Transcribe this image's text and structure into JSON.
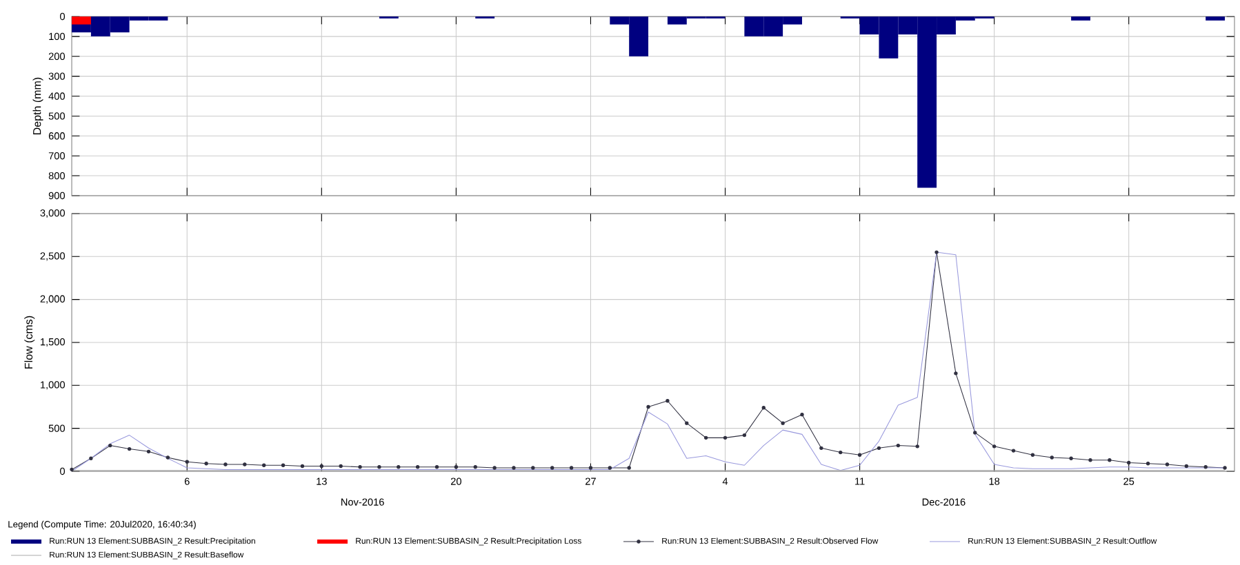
{
  "chart_data": [
    {
      "type": "bar",
      "ylabel": "Depth (mm)",
      "xlim": [
        "2016-10-31",
        "2016-12-30T12:00"
      ],
      "xticks": [
        {
          "value": "2016-11-06",
          "label": null
        },
        {
          "value": "2016-11-13",
          "label": null
        },
        {
          "value": "2016-11-20",
          "label": null
        },
        {
          "value": "2016-11-27",
          "label": null
        },
        {
          "value": "2016-12-04",
          "label": null
        },
        {
          "value": "2016-12-11",
          "label": null
        },
        {
          "value": "2016-12-18",
          "label": null
        },
        {
          "value": "2016-12-25",
          "label": null
        }
      ],
      "ylim": [
        900,
        0
      ],
      "yticks": [
        0,
        100,
        200,
        300,
        400,
        500,
        600,
        700,
        800,
        900
      ],
      "grid": true,
      "tick_labels": "y",
      "legend": "bottom",
      "series": [
        {
          "name": "Run:RUN 13 Element:SUBBASIN_2 Result:Precipitation",
          "color": "#000080",
          "x": [
            "2016-10-31T12:00",
            "2016-11-01T12:00",
            "2016-11-02T12:00",
            "2016-11-03T12:00",
            "2016-11-04T12:00",
            "2016-11-16T12:00",
            "2016-11-21T12:00",
            "2016-11-28T12:00",
            "2016-11-29T12:00",
            "2016-12-01T12:00",
            "2016-12-02T12:00",
            "2016-12-03T12:00",
            "2016-12-05T12:00",
            "2016-12-06T12:00",
            "2016-12-07T12:00",
            "2016-12-10T12:00",
            "2016-12-11T12:00",
            "2016-12-12T12:00",
            "2016-12-13T12:00",
            "2016-12-14T12:00",
            "2016-12-15T12:00",
            "2016-12-16T12:00",
            "2016-12-17T12:00",
            "2016-12-22T12:00",
            "2016-12-29T12:00"
          ],
          "values": [
            80,
            100,
            80,
            20,
            20,
            10,
            10,
            40,
            200,
            40,
            10,
            10,
            100,
            100,
            40,
            10,
            90,
            210,
            90,
            860,
            90,
            20,
            10,
            20,
            20
          ]
        },
        {
          "name": "Run:RUN 13 Element:SUBBASIN_2 Result:Precipitation Loss",
          "color": "#ff0000",
          "x": [
            "2016-10-31T12:00"
          ],
          "values": [
            40
          ]
        }
      ]
    },
    {
      "type": "line",
      "ylabel": "Flow (cms)",
      "legend_title": "Legend (Compute Time: 20Jul2020, 16:40:34)",
      "annotations": [
        "Nov-2016",
        "Dec-2016"
      ],
      "xlim": [
        "2016-10-31",
        "2016-12-30T12:00"
      ],
      "xticks": [
        {
          "value": "2016-11-06",
          "label": "6"
        },
        {
          "value": "2016-11-13",
          "label": "13"
        },
        {
          "value": "2016-11-20",
          "label": "20"
        },
        {
          "value": "2016-11-27",
          "label": "27"
        },
        {
          "value": "2016-12-04",
          "label": "4"
        },
        {
          "value": "2016-12-11",
          "label": "11"
        },
        {
          "value": "2016-12-18",
          "label": "18"
        },
        {
          "value": "2016-12-25",
          "label": "25"
        }
      ],
      "ylim": [
        0,
        3000
      ],
      "yticks": [
        0,
        500,
        {
          "value": 1000,
          "label": "1,000"
        },
        {
          "value": 1500,
          "label": "1,500"
        },
        {
          "value": 2000,
          "label": "2,000"
        },
        {
          "value": 2500,
          "label": "2,500"
        },
        {
          "value": 3000,
          "label": "3,000"
        }
      ],
      "grid": true,
      "legend": "bottom",
      "x": [
        "2016-10-31",
        "2016-11-01",
        "2016-11-02",
        "2016-11-03",
        "2016-11-04",
        "2016-11-05",
        "2016-11-06",
        "2016-11-07",
        "2016-11-08",
        "2016-11-09",
        "2016-11-10",
        "2016-11-11",
        "2016-11-12",
        "2016-11-13",
        "2016-11-14",
        "2016-11-15",
        "2016-11-16",
        "2016-11-17",
        "2016-11-18",
        "2016-11-19",
        "2016-11-20",
        "2016-11-21",
        "2016-11-22",
        "2016-11-23",
        "2016-11-24",
        "2016-11-25",
        "2016-11-26",
        "2016-11-27",
        "2016-11-28",
        "2016-11-29",
        "2016-11-30",
        "2016-12-01",
        "2016-12-02",
        "2016-12-03",
        "2016-12-04",
        "2016-12-05",
        "2016-12-06",
        "2016-12-07",
        "2016-12-08",
        "2016-12-09",
        "2016-12-10",
        "2016-12-11",
        "2016-12-12",
        "2016-12-13",
        "2016-12-14",
        "2016-12-15",
        "2016-12-16",
        "2016-12-17",
        "2016-12-18",
        "2016-12-19",
        "2016-12-20",
        "2016-12-21",
        "2016-12-22",
        "2016-12-23",
        "2016-12-24",
        "2016-12-25",
        "2016-12-26",
        "2016-12-27",
        "2016-12-28",
        "2016-12-29",
        "2016-12-30"
      ],
      "series": [
        {
          "name": "Run:RUN 13 Element:SUBBASIN_2 Result:Observed Flow",
          "color": "#303040",
          "marker": "circle",
          "values": [
            20,
            150,
            300,
            260,
            230,
            160,
            110,
            90,
            80,
            80,
            70,
            70,
            60,
            60,
            60,
            50,
            50,
            50,
            50,
            50,
            50,
            50,
            40,
            40,
            40,
            40,
            40,
            40,
            40,
            40,
            750,
            820,
            560,
            390,
            390,
            420,
            740,
            560,
            660,
            270,
            220,
            190,
            270,
            300,
            290,
            2550,
            1140,
            450,
            290,
            240,
            190,
            160,
            150,
            130,
            130,
            100,
            90,
            80,
            60,
            50,
            40
          ]
        },
        {
          "name": "Run:RUN 13 Element:SUBBASIN_2 Result:Outflow",
          "color": "#9999dd",
          "marker": "none",
          "values": [
            0,
            150,
            320,
            420,
            270,
            150,
            40,
            30,
            20,
            20,
            20,
            20,
            20,
            20,
            20,
            20,
            20,
            20,
            20,
            20,
            20,
            20,
            20,
            20,
            20,
            20,
            20,
            20,
            20,
            150,
            690,
            550,
            150,
            180,
            110,
            70,
            300,
            480,
            430,
            80,
            10,
            70,
            350,
            770,
            860,
            2550,
            2520,
            430,
            80,
            40,
            30,
            30,
            30,
            40,
            50,
            50,
            40,
            40,
            40,
            40,
            40
          ]
        },
        {
          "name": "Run:RUN 13 Element:SUBBASIN_2 Result:Baseflow",
          "color": "#aaaaaa",
          "marker": "none",
          "x": [
            "2016-10-31",
            "2016-11-30",
            "2016-12-30"
          ],
          "values": [
            10,
            10,
            10
          ]
        }
      ]
    }
  ]
}
